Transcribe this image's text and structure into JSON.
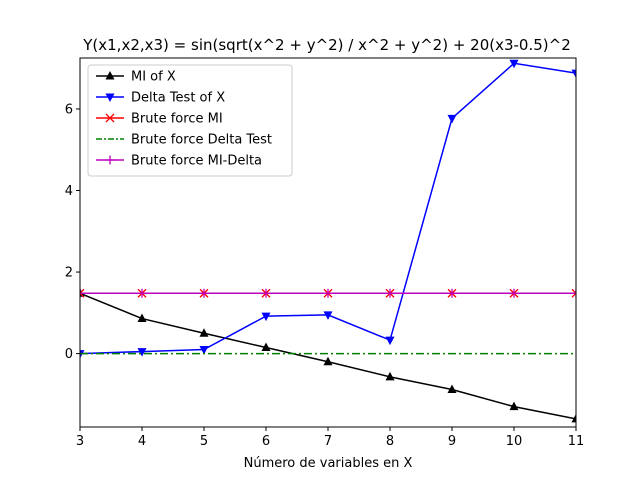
{
  "chart_data": {
    "type": "line",
    "title": "Y(x1,x2,x3) = sin(sqrt(x^2 + y^2) / x^2 + y^2) + 20(x3-0.5)^2",
    "xlabel": "Número de variables en X",
    "ylabel": "",
    "xlim": [
      3,
      11
    ],
    "ylim": [
      -1.8,
      7.25
    ],
    "x_ticks": [
      3,
      4,
      5,
      6,
      7,
      8,
      9,
      10,
      11
    ],
    "y_ticks": [
      0,
      2,
      4,
      6
    ],
    "grid": false,
    "legend_position": "top-left",
    "x": [
      3,
      4,
      5,
      6,
      7,
      8,
      9,
      10,
      11
    ],
    "series": [
      {
        "name": "MI of X",
        "color": "#000000",
        "marker": "triangle-up",
        "linestyle": "solid",
        "values": [
          1.48,
          0.86,
          0.5,
          0.15,
          -0.2,
          -0.57,
          -0.88,
          -1.3,
          -1.6
        ]
      },
      {
        "name": "Delta Test of X",
        "color": "#0000ff",
        "marker": "triangle-down",
        "linestyle": "solid",
        "values": [
          0.0,
          0.05,
          0.1,
          0.92,
          0.95,
          0.33,
          5.77,
          7.12,
          6.88
        ]
      },
      {
        "name": "Brute force MI",
        "color": "#ff0000",
        "marker": "x",
        "linestyle": "solid",
        "values": [
          1.48,
          1.48,
          1.48,
          1.48,
          1.48,
          1.48,
          1.48,
          1.48,
          1.48
        ]
      },
      {
        "name": "Brute force Delta Test",
        "color": "#008000",
        "marker": "none",
        "linestyle": "dashdot",
        "values": [
          0.0,
          0.0,
          0.0,
          0.0,
          0.0,
          0.0,
          0.0,
          0.0,
          0.0
        ]
      },
      {
        "name": "Brute force MI-Delta",
        "color": "#bf00bf",
        "marker": "plus",
        "linestyle": "solid",
        "values": [
          1.48,
          1.48,
          1.48,
          1.48,
          1.48,
          1.48,
          1.48,
          1.48,
          1.48
        ]
      }
    ]
  }
}
